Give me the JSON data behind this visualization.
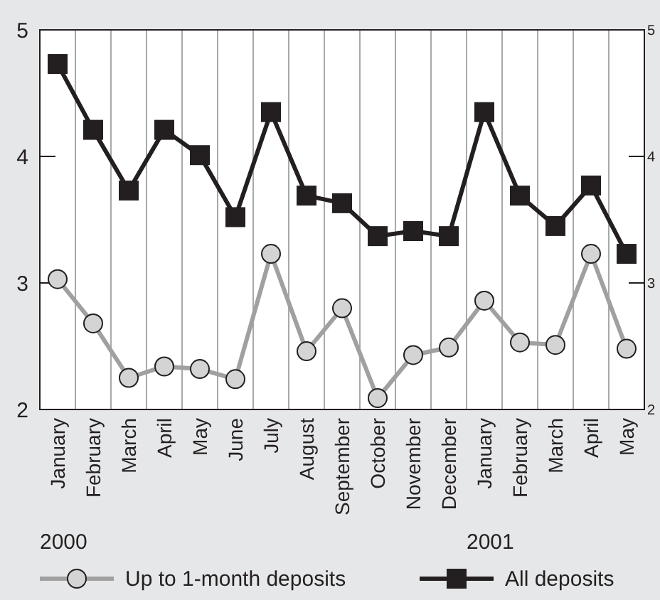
{
  "chart_data": {
    "type": "line",
    "categories": [
      "January",
      "February",
      "March",
      "April",
      "May",
      "June",
      "July",
      "August",
      "September",
      "October",
      "November",
      "December",
      "January",
      "February",
      "March",
      "April",
      "May"
    ],
    "series": [
      {
        "name": "Up to 1-month deposits",
        "color": "#a0a0a0",
        "marker": "circle",
        "values": [
          3.03,
          2.68,
          2.25,
          2.34,
          2.32,
          2.24,
          3.23,
          2.46,
          2.8,
          2.09,
          2.43,
          2.49,
          2.86,
          2.53,
          2.51,
          3.23,
          2.48
        ]
      },
      {
        "name": "All deposits",
        "color": "#231f20",
        "marker": "square",
        "values": [
          4.73,
          4.21,
          3.73,
          4.21,
          4.01,
          3.52,
          4.35,
          3.69,
          3.63,
          3.37,
          3.41,
          3.37,
          4.35,
          3.69,
          3.45,
          3.77,
          3.23
        ]
      }
    ],
    "ylim": [
      2,
      5
    ],
    "yticks": [
      2,
      3,
      4,
      5
    ],
    "y2lim": [
      2,
      5
    ],
    "y2ticks": [
      2,
      3,
      4,
      5
    ],
    "grid": "x",
    "legend": "bottom",
    "annotations": [
      "2000",
      "2001"
    ]
  }
}
